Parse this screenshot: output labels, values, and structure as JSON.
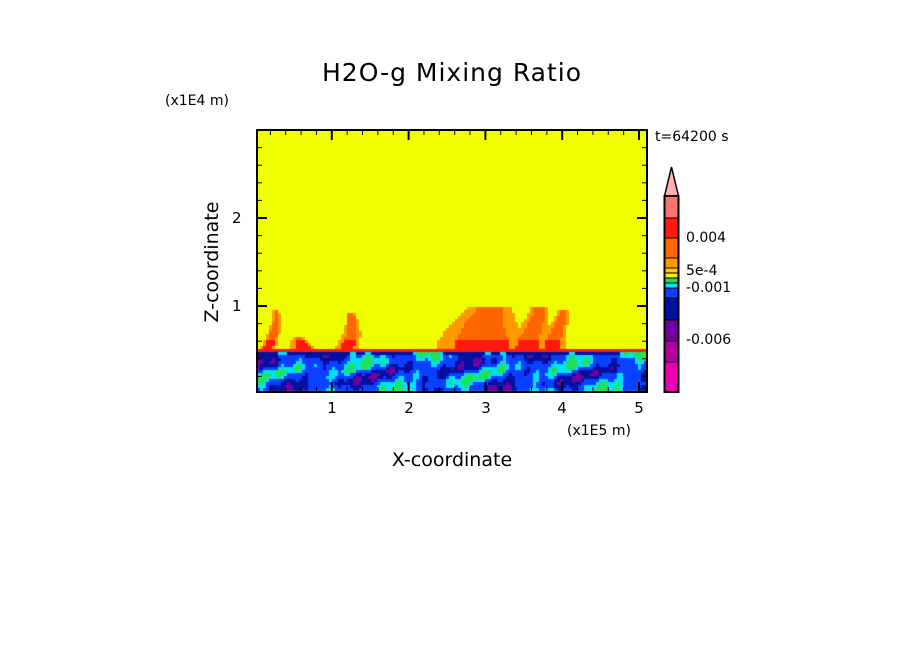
{
  "chart_data": {
    "type": "heatmap",
    "title": "H2O-g Mixing Ratio",
    "xlabel": "X-coordinate",
    "ylabel": "Z-coordinate",
    "x_unit": "(x1E5 m)",
    "y_unit": "(x1E4 m)",
    "time_label": "t=64200 s",
    "xlim": [
      0,
      5.1
    ],
    "ylim": [
      0,
      3
    ],
    "x_ticks": [
      "1",
      "2",
      "3",
      "4",
      "5"
    ],
    "y_ticks": [
      "1",
      "2"
    ],
    "boundary_layer_top": 0.5,
    "colorbar": {
      "labels": [
        "0.004",
        "5e-4",
        "-0.001",
        "-0.006"
      ],
      "extend_color": "#ffb0b0",
      "colors_top_to_bottom": [
        "#ff7070",
        "#ff1a10",
        "#ff6600",
        "#ff9900",
        "#ffcc00",
        "#f0f000",
        "#20e060",
        "#00e0ff",
        "#0a40ff",
        "#0010a0",
        "#7000a0",
        "#b000a0",
        "#e800b0"
      ]
    },
    "background_color": "#f0ff00"
  }
}
